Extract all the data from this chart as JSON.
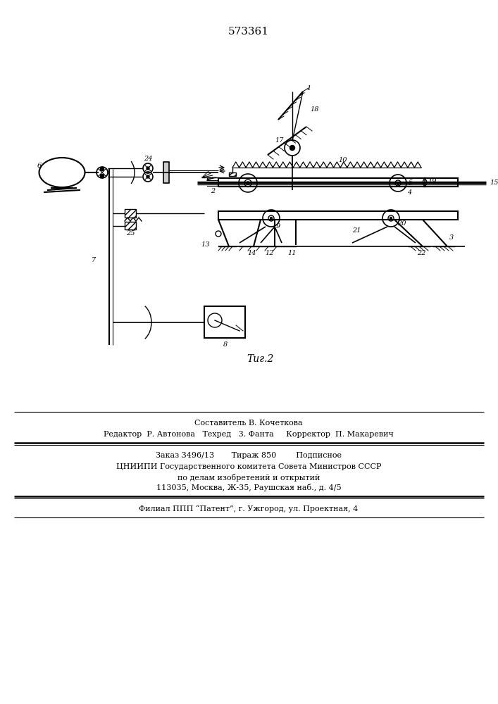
{
  "title": "573361",
  "fig_label": "Τиг.2",
  "bg_color": "#ffffff",
  "line_color": "#000000",
  "footer_lines": [
    "Составитель В. Кочеткова",
    "Редактор  Р. Автонова   Техред   3. Фанта     Корректор  П. Макаревич",
    "Заказ 3496/13       Тираж 850        Подписное",
    "ЦНИИПИ Государственного комитета Совета Министров СССР",
    "по делам изобретений и открытий",
    "113035, Москва, Ж-35, Раушская наб., д. 4/5",
    "Филиал ППП “Патент”, г. Ужгород, ул. Проектная, 4"
  ]
}
